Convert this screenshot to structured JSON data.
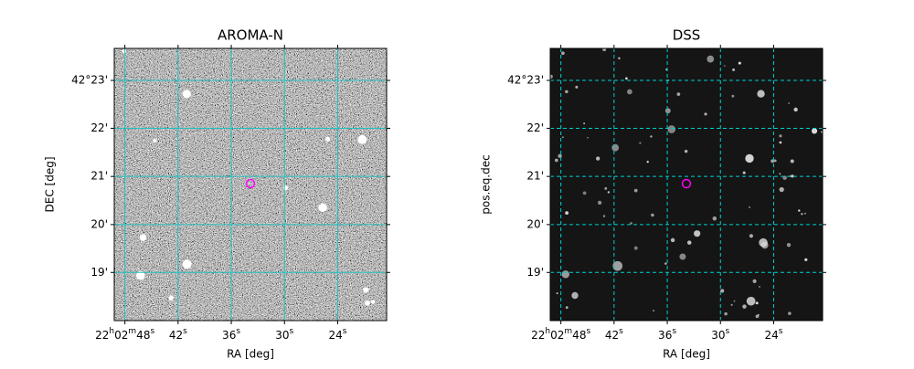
{
  "chart_data": [
    {
      "type": "image",
      "title": "AROMA-N",
      "xlabel": "RA [deg]",
      "ylabel": "DEC [deg]",
      "xlim": [
        330.705,
        330.577
      ],
      "ylim": [
        42.3,
        42.3944
      ],
      "xticks": [
        {
          "value": 330.7,
          "label": "22h02m48s"
        },
        {
          "value": 330.675,
          "label": "42s"
        },
        {
          "value": 330.65,
          "label": "36s"
        },
        {
          "value": 330.625,
          "label": "30s"
        },
        {
          "value": 330.6,
          "label": "24s"
        }
      ],
      "yticks": [
        {
          "value": 42.3833,
          "label": "42°23'"
        },
        {
          "value": 42.3667,
          "label": "22'"
        },
        {
          "value": 42.35,
          "label": "21'"
        },
        {
          "value": 42.3333,
          "label": "20'"
        },
        {
          "value": 42.3167,
          "label": "19'"
        }
      ],
      "grid": true,
      "grid_linestyle": "solid",
      "grid_color": "#20c0c0",
      "image_style": "noise",
      "points": {
        "x": [
          330.641
        ],
        "y": [
          42.3475
        ],
        "color": "#ff00ff"
      }
    },
    {
      "type": "image",
      "title": "DSS",
      "xlabel": "RA [deg]",
      "ylabel": "pos.eq.dec",
      "xlim": [
        330.705,
        330.577
      ],
      "ylim": [
        42.3,
        42.3944
      ],
      "xticks": [
        {
          "value": 330.7,
          "label": "22h02m48s"
        },
        {
          "value": 330.675,
          "label": "42s"
        },
        {
          "value": 330.65,
          "label": "36s"
        },
        {
          "value": 330.625,
          "label": "30s"
        },
        {
          "value": 330.6,
          "label": "24s"
        }
      ],
      "yticks": [
        {
          "value": 42.3833,
          "label": "42°23'"
        },
        {
          "value": 42.3667,
          "label": "22'"
        },
        {
          "value": 42.35,
          "label": "21'"
        },
        {
          "value": 42.3333,
          "label": "20'"
        },
        {
          "value": 42.3167,
          "label": "19'"
        }
      ],
      "grid": true,
      "grid_linestyle": "dashed",
      "grid_color": "#00d0d0",
      "image_style": "stars",
      "points": {
        "x": [
          330.641
        ],
        "y": [
          42.3475
        ],
        "color": "#ff00ff"
      }
    }
  ]
}
